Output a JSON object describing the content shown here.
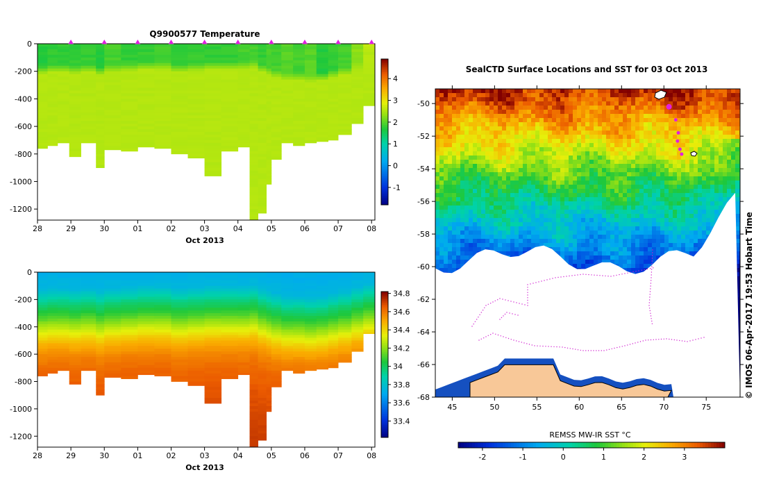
{
  "chart_data": [
    {
      "type": "heatmap",
      "title": "Q9900577  Temperature",
      "xlabel": "Oct 2013",
      "ylabel": "",
      "x_ticks": [
        "28",
        "29",
        "30",
        "01",
        "02",
        "03",
        "04",
        "05",
        "06",
        "07",
        "08"
      ],
      "y_ticks": [
        "0",
        "-200",
        "-400",
        "-600",
        "-800",
        "-1000",
        "-1200"
      ],
      "y_tick_values": [
        0,
        -200,
        -400,
        -600,
        -800,
        -1000,
        -1200
      ],
      "ylim": [
        -1280,
        0
      ],
      "xlim_days": [
        0,
        10.1
      ],
      "colorbar": {
        "vmin": -1.8,
        "vmax": 4.9,
        "ticks": [
          "-1",
          "0",
          "1",
          "2",
          "3",
          "4"
        ],
        "tick_values": [
          -1,
          0,
          1,
          2,
          3,
          4
        ],
        "palette": "jet"
      },
      "profile_markers_days": [
        1,
        2,
        3,
        4,
        5,
        6,
        7,
        8,
        9,
        10
      ],
      "profiles": {
        "x_days": [
          0.0,
          0.3,
          0.6,
          0.95,
          1.3,
          1.75,
          2.0,
          2.5,
          3.0,
          3.5,
          4.0,
          4.5,
          5.0,
          5.5,
          6.0,
          6.35,
          6.6,
          6.85,
          7.0,
          7.3,
          7.65,
          8.0,
          8.35,
          8.7,
          9.0,
          9.4,
          9.75,
          10.1
        ],
        "max_depth": [
          760,
          740,
          720,
          820,
          720,
          900,
          770,
          780,
          750,
          760,
          800,
          830,
          960,
          780,
          750,
          1280,
          1230,
          1020,
          840,
          720,
          740,
          720,
          710,
          700,
          660,
          580,
          450
        ],
        "surface_temp": [
          1.7,
          1.8,
          1.8,
          1.8,
          1.8,
          1.7,
          1.9,
          1.8,
          1.8,
          1.9,
          1.8,
          1.8,
          1.8,
          1.8,
          1.9,
          1.9,
          1.8,
          1.9,
          1.9,
          2.0,
          1.9,
          2.0,
          1.7,
          1.8,
          1.9,
          2.3,
          2.6
        ],
        "mixed_layer_depth": [
          200,
          190,
          190,
          200,
          190,
          210,
          190,
          180,
          170,
          170,
          190,
          180,
          170,
          170,
          170,
          160,
          190,
          210,
          230,
          250,
          250,
          260,
          250,
          230,
          210,
          180,
          150
        ],
        "deep_temp": 2.55
      },
      "last_profile_surface_temp": 3.0
    },
    {
      "type": "heatmap",
      "title": "",
      "xlabel": "Oct 2013",
      "ylabel": "",
      "x_ticks": [
        "28",
        "29",
        "30",
        "01",
        "02",
        "03",
        "04",
        "05",
        "06",
        "07",
        "08"
      ],
      "y_ticks": [
        "0",
        "-200",
        "-400",
        "-600",
        "-800",
        "-1000",
        "-1200"
      ],
      "y_tick_values": [
        0,
        -200,
        -400,
        -600,
        -800,
        -1000,
        -1200
      ],
      "ylim": [
        -1280,
        0
      ],
      "xlim_days": [
        0,
        10.1
      ],
      "colorbar": {
        "vmin": 33.22,
        "vmax": 34.82,
        "ticks": [
          "33.4",
          "33.6",
          "33.8",
          "34",
          "34.2",
          "34.4",
          "34.6",
          "34.8"
        ],
        "tick_values": [
          33.4,
          33.6,
          33.8,
          34.0,
          34.2,
          34.4,
          34.6,
          34.8
        ],
        "palette": "jet"
      },
      "salinity_levels": [
        {
          "depth": 0,
          "value": 33.72
        },
        {
          "depth": 120,
          "value": 33.76
        },
        {
          "depth": 220,
          "value": 33.95
        },
        {
          "depth": 320,
          "value": 34.1
        },
        {
          "depth": 420,
          "value": 34.3
        },
        {
          "depth": 520,
          "value": 34.48
        },
        {
          "depth": 620,
          "value": 34.58
        },
        {
          "depth": 720,
          "value": 34.63
        },
        {
          "depth": 900,
          "value": 34.67
        },
        {
          "depth": 1100,
          "value": 34.7
        },
        {
          "depth": 1300,
          "value": 34.72
        }
      ],
      "last_profile_surface_salinity": 33.5
    },
    {
      "type": "map",
      "title": "SealCTD Surface Locations and SST for 03 Oct 2013",
      "x_ticks": [
        "45",
        "50",
        "55",
        "60",
        "65",
        "70",
        "75"
      ],
      "x_tick_values": [
        45,
        50,
        55,
        60,
        65,
        70,
        75
      ],
      "y_ticks": [
        "-50",
        "-52",
        "-54",
        "-56",
        "-58",
        "-60",
        "-62",
        "-64",
        "-66",
        "-68"
      ],
      "y_tick_values": [
        -50,
        -52,
        -54,
        -56,
        -58,
        -60,
        -62,
        -64,
        -66,
        -68
      ],
      "xlim": [
        43.0,
        79.0
      ],
      "ylim": [
        -68.0,
        -49.1
      ],
      "colorbar": {
        "label": "REMSS MW-IR SST °C",
        "vmin": -2.6,
        "vmax": 4.0,
        "ticks": [
          "-2",
          "-1",
          "0",
          "1",
          "2",
          "3"
        ],
        "tick_values": [
          -2,
          -1,
          0,
          1,
          2,
          3
        ],
        "palette": "jet"
      },
      "seal_locations": [
        {
          "lon": 70.6,
          "lat": -50.2
        },
        {
          "lon": 71.4,
          "lat": -51.0
        },
        {
          "lon": 71.7,
          "lat": -51.8
        },
        {
          "lon": 71.6,
          "lat": -52.3
        },
        {
          "lon": 71.9,
          "lat": -52.8
        },
        {
          "lon": 72.1,
          "lat": -53.1
        }
      ],
      "sea_ice_edge": {
        "lat_min": -59.5,
        "lat_max": -58.8
      },
      "continent_edge_lat": -66.1
    }
  ],
  "credit": "© IMOS 06-Apr-2017 19:53 Hobart Time"
}
